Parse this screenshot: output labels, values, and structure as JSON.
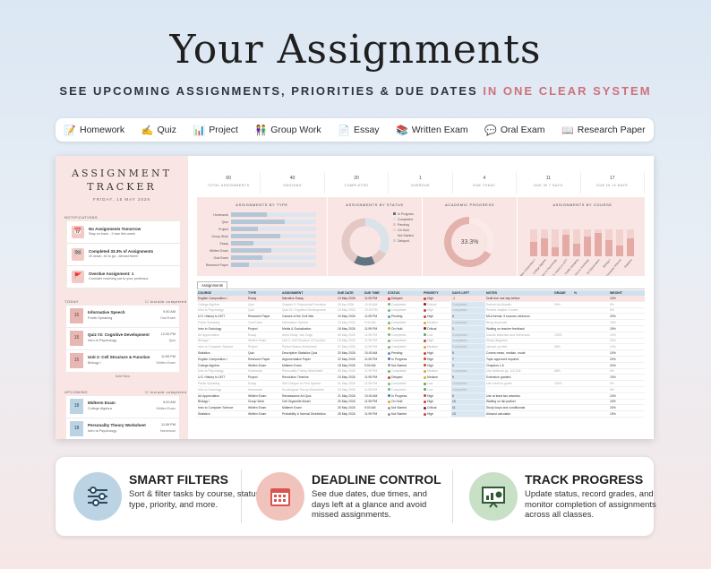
{
  "header": {
    "title": "Your Assignments",
    "subtitle_main": "SEE UPCOMING ASSIGNMENTS, PRIORITIES & DUE DATES",
    "subtitle_highlight": "IN ONE CLEAR SYSTEM",
    "highlight_color": "#d0707a"
  },
  "types": [
    {
      "icon": "📝",
      "icon_name": "memo-icon",
      "label": "Homework"
    },
    {
      "icon": "✍️",
      "icon_name": "writing-hand-icon",
      "label": "Quiz"
    },
    {
      "icon": "📊",
      "icon_name": "bar-chart-icon",
      "label": "Project"
    },
    {
      "icon": "👫",
      "icon_name": "people-icon",
      "label": "Group Work"
    },
    {
      "icon": "📄",
      "icon_name": "document-icon",
      "label": "Essay"
    },
    {
      "icon": "📚",
      "icon_name": "books-icon",
      "label": "Written Exam"
    },
    {
      "icon": "💬",
      "icon_name": "speech-bubble-icon",
      "label": "Oral Exam"
    },
    {
      "icon": "📖",
      "icon_name": "open-book-icon",
      "label": "Research Paper"
    }
  ],
  "sheet": {
    "sidebar": {
      "title_line1": "ASSIGNMENT",
      "title_line2": "TRACKER",
      "date": "FRIDAY, 15 MAY 2026",
      "notifications_label": "NOTIFICATIONS",
      "notifications": [
        {
          "icon": "📅",
          "title": "No Assignments Tomorrow",
          "text": "Stay on track - 9 due this week"
        },
        {
          "icon": "🏁",
          "title": "Completed 33.3% of Assignments",
          "text": "20 down, 40 to go - almost there!"
        },
        {
          "icon": "🚩",
          "title": "Overdue Assignment: 1",
          "text": "Consider reaching out to your professor"
        }
      ],
      "today_label": "TODAY",
      "include_completed": "include completed",
      "today": [
        {
          "day": "15",
          "title": "Informative Speech",
          "course": "Public Speaking",
          "time": "9:30 AM",
          "type": "Oral Exam"
        },
        {
          "day": "15",
          "title": "Quiz #2: Cognitive Development",
          "course": "Intro to Psychology",
          "time": "12:00 PM",
          "type": "Quiz"
        },
        {
          "day": "15",
          "title": "Unit 2: Cell Structure & Function",
          "course": "Biology I",
          "time": "11:59 PM",
          "type": "Written Exam"
        }
      ],
      "add_new": "Add New",
      "upcoming_label": "UPCOMING",
      "upcoming": [
        {
          "day": "18",
          "title": "Midterm Exam",
          "course": "College Algebra",
          "time": "9:00 AM",
          "type": "Written Exam"
        },
        {
          "day": "18",
          "title": "Personality Theory Worksheet",
          "course": "Intro to Psychology",
          "time": "11:59 PM",
          "type": "Homework"
        }
      ]
    },
    "stats": [
      {
        "n": "60",
        "l": "TOTAL ASSIGNMENTS"
      },
      {
        "n": "40",
        "l": "ONGOING"
      },
      {
        "n": "20",
        "l": "COMPLETED"
      },
      {
        "n": "1",
        "l": "OVERDUE"
      },
      {
        "n": "4",
        "l": "DUE TODAY"
      },
      {
        "n": "11",
        "l": "DUE IN 7 DAYS"
      },
      {
        "n": "17",
        "l": "DUE IN 14 DAYS"
      }
    ],
    "chart_titles": {
      "type": "ASSIGNMENTS BY TYPE",
      "status": "ASSIGNMENTS BY STATUS",
      "progress": "ACADEMIC PROGRESS",
      "course": "ASSIGNMENTS BY COURSE"
    },
    "progress_label": "33.3%",
    "status_legend": [
      "In Progress",
      "Completed",
      "Pending",
      "On Hold",
      "Not Started",
      "Delayed"
    ],
    "tab": "Assignments",
    "columns": [
      "COURSE",
      "TYPE",
      "ASSIGNMENT",
      "DUE DATE",
      "DUE TIME",
      "STATUS",
      "PRIORITY",
      "DAYS LEFT",
      "NOTES",
      "GRADE",
      "%",
      "WEIGHT"
    ],
    "rows": [
      {
        "course": "English Composition I",
        "type": "Essay",
        "assignment": "Narrative Essay",
        "date": "14 May 2026",
        "time": "11:59 PM",
        "status": "Delayed",
        "priority": "High",
        "days": "-1",
        "notes": "Draft due one day before",
        "grade": "",
        "pct": "",
        "weight": "10%",
        "done": false,
        "hl": true
      },
      {
        "course": "College Algebra",
        "type": "Quiz",
        "assignment": "Chapter 3: Polynomial Functions",
        "date": "29 Apr 2026",
        "time": "10:00 AM",
        "status": "Completed",
        "priority": "Critical",
        "days": "Completed",
        "notes": "Submit via Moodle",
        "grade": "90%",
        "pct": "",
        "weight": "5%",
        "done": true,
        "hl": false
      },
      {
        "course": "Intro to Psychology",
        "type": "Quiz",
        "assignment": "Quiz #2: Cognitive Development",
        "date": "15 May 2026",
        "time": "12:00 PM",
        "status": "Completed",
        "priority": "High",
        "days": "Completed",
        "notes": "Review chapter 3 notes",
        "grade": "",
        "pct": "",
        "weight": "5%",
        "done": true,
        "hl": false
      },
      {
        "course": "U.S. History to 1877",
        "type": "Research Paper",
        "assignment": "Causes of the Civil War",
        "date": "19 May 2026",
        "time": "11:59 PM",
        "status": "Pending",
        "priority": "High",
        "days": "4",
        "notes": "MLA format, 5 sources minimum",
        "grade": "",
        "pct": "",
        "weight": "20%",
        "done": false,
        "hl": false
      },
      {
        "course": "Public Speaking",
        "type": "Oral Exam",
        "assignment": "Informative Speech",
        "date": "15 May 2026",
        "time": "9:30 AM",
        "status": "Completed",
        "priority": "Medium",
        "days": "Completed",
        "notes": "Bring visual aid",
        "grade": "",
        "pct": "",
        "weight": "15%",
        "done": true,
        "hl": false
      },
      {
        "course": "Intro to Sociology",
        "type": "Project",
        "assignment": "Media & Socialization",
        "date": "16 May 2026",
        "time": "11:59 PM",
        "status": "On Hold",
        "priority": "Critical",
        "days": "1",
        "notes": "Waiting on teacher feedback",
        "grade": "",
        "pct": "",
        "weight": "15%",
        "done": false,
        "hl": false
      },
      {
        "course": "Art Appreciation",
        "type": "Essay",
        "assignment": "Artist Study: Van Gogh",
        "date": "08 May 2026",
        "time": "11:59 PM",
        "status": "Completed",
        "priority": "Low",
        "days": "Completed",
        "notes": "Include sketches and references",
        "grade": "100%",
        "pct": "",
        "weight": "10%",
        "done": true,
        "hl": false
      },
      {
        "course": "Biology I",
        "type": "Written Exam",
        "assignment": "Unit 2: Cell Structure & Function",
        "date": "15 May 2026",
        "time": "11:59 PM",
        "status": "Completed",
        "priority": "High",
        "days": "Completed",
        "notes": "Study diagrams",
        "grade": "",
        "pct": "",
        "weight": "20%",
        "done": true,
        "hl": false
      },
      {
        "course": "Intro to Computer Science",
        "type": "Project",
        "assignment": "Python Basics Worksheet",
        "date": "07 May 2026",
        "time": "11:59 PM",
        "status": "Completed",
        "priority": "Medium",
        "days": "Completed",
        "notes": "Upload .py files",
        "grade": "95%",
        "pct": "",
        "weight": "10%",
        "done": true,
        "hl": false
      },
      {
        "course": "Statistics",
        "type": "Quiz",
        "assignment": "Descriptive Statistics Quiz",
        "date": "20 May 2026",
        "time": "10:00 AM",
        "status": "Pending",
        "priority": "High",
        "days": "5",
        "notes": "Covers mean, median, mode",
        "grade": "",
        "pct": "",
        "weight": "10%",
        "done": false,
        "hl": false
      },
      {
        "course": "English Composition I",
        "type": "Research Paper",
        "assignment": "Argumentative Paper",
        "date": "22 May 2026",
        "time": "11:59 PM",
        "status": "In Progress",
        "priority": "High",
        "days": "7",
        "notes": "Topic approved required",
        "grade": "",
        "pct": "",
        "weight": "20%",
        "done": false,
        "hl": false
      },
      {
        "course": "College Algebra",
        "type": "Written Exam",
        "assignment": "Midterm Exam",
        "date": "18 May 2026",
        "time": "9:00 AM",
        "status": "Not Started",
        "priority": "High",
        "days": "3",
        "notes": "Chapters 1-6",
        "grade": "",
        "pct": "",
        "weight": "20%",
        "done": false,
        "hl": false
      },
      {
        "course": "Intro to Psychology",
        "type": "Homework",
        "assignment": "Personality Theory Worksheet",
        "date": "05 May 2026",
        "time": "11:59 PM",
        "status": "Completed",
        "priority": "Medium",
        "days": "Completed",
        "notes": "Use textbook pp. 112-118",
        "grade": "88%",
        "pct": "",
        "weight": "5%",
        "done": true,
        "hl": false
      },
      {
        "course": "U.S. History to 1877",
        "type": "Project",
        "assignment": "Revolution Timeline",
        "date": "24 May 2026",
        "time": "11:59 PM",
        "status": "Delayed",
        "priority": "Medium",
        "days": "9",
        "notes": "Extension granted",
        "grade": "",
        "pct": "",
        "weight": "10%",
        "done": false,
        "hl": false
      },
      {
        "course": "Public Speaking",
        "type": "Essay",
        "assignment": "Self-Critique on First Speech",
        "date": "01 May 2026",
        "time": "11:59 PM",
        "status": "Completed",
        "priority": "Low",
        "days": "Completed",
        "notes": "Use rubric to guide",
        "grade": "100%",
        "pct": "",
        "weight": "5%",
        "done": true,
        "hl": false
      },
      {
        "course": "Intro to Sociology",
        "type": "Homework",
        "assignment": "Sociological Theory Worksheet",
        "date": "04 May 2026",
        "time": "11:59 PM",
        "status": "Completed",
        "priority": "Low",
        "days": "Completed",
        "notes": "",
        "grade": "",
        "pct": "",
        "weight": "5%",
        "done": true,
        "hl": false
      },
      {
        "course": "Art Appreciation",
        "type": "Written Exam",
        "assignment": "Renaissance Art Quiz",
        "date": "21 May 2026",
        "time": "10:00 AM",
        "status": "In Progress",
        "priority": "High",
        "days": "6",
        "notes": "Use at least two artworks",
        "grade": "",
        "pct": "",
        "weight": "10%",
        "done": false,
        "hl": false
      },
      {
        "course": "Biology I",
        "type": "Group Work",
        "assignment": "Cell Organelle Model",
        "date": "25 May 2026",
        "time": "11:59 PM",
        "status": "On Hold",
        "priority": "High",
        "days": "10",
        "notes": "Waiting on lab partner",
        "grade": "",
        "pct": "",
        "weight": "15%",
        "done": false,
        "hl": false
      },
      {
        "course": "Intro to Computer Science",
        "type": "Written Exam",
        "assignment": "Midterm Exam",
        "date": "26 May 2026",
        "time": "9:00 AM",
        "status": "Not Started",
        "priority": "Critical",
        "days": "11",
        "notes": "Study loops and conditionals",
        "grade": "",
        "pct": "",
        "weight": "20%",
        "done": false,
        "hl": false
      },
      {
        "course": "Statistics",
        "type": "Written Exam",
        "assignment": "Probability & Normal Distribution",
        "date": "28 May 2026",
        "time": "11:59 PM",
        "status": "Not Started",
        "priority": "High",
        "days": "13",
        "notes": "Allowed calculator",
        "grade": "",
        "pct": "",
        "weight": "15%",
        "done": false,
        "hl": false
      }
    ]
  },
  "features": [
    {
      "icon_name": "sliders-icon",
      "color": "#bcd3e3",
      "title": "SMART FILTERS",
      "desc": "Sort & filter tasks by course, status, type, priority, and more."
    },
    {
      "icon_name": "calendar-icon",
      "color": "#f1c3bd",
      "title": "DEADLINE CONTROL",
      "desc": "See due dates, due times, and days left at a glance and avoid missed assignments."
    },
    {
      "icon_name": "chart-board-icon",
      "color": "#c8e0c6",
      "title": "TRACK PROGRESS",
      "desc": "Update status, record grades, and monitor completion of assignments across all classes."
    }
  ]
}
